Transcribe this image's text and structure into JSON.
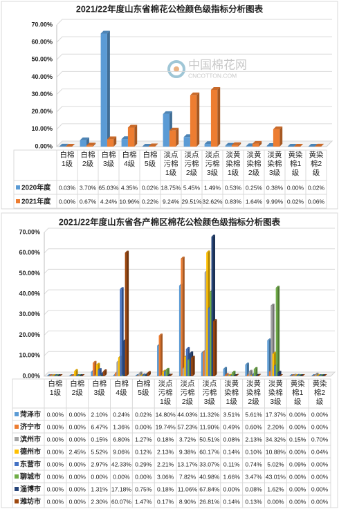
{
  "chart_data": [
    {
      "type": "bar",
      "title": "2021/22年度山东省棉花公检颜色级指标分析图表",
      "categories": [
        "白棉1级",
        "白棉2级",
        "白棉3级",
        "白棉4级",
        "白棉5级",
        "淡点污棉1级",
        "淡点污棉2级",
        "淡点污棉3级",
        "淡黄染棉1级",
        "淡黄染棉2级",
        "淡黄染棉3级",
        "黄染棉1级",
        "黄染棉2级"
      ],
      "series": [
        {
          "name": "2020年度",
          "color": "#5b9bd5",
          "values": [
            0.03,
            3.7,
            65.03,
            4.35,
            0.02,
            18.75,
            5.45,
            1.49,
            0.53,
            0.25,
            0.38,
            0.0,
            0.02
          ],
          "value_labels": [
            "0.03%",
            "3.70%",
            "65.03%",
            "4.35%",
            "0.02%",
            "18.75%",
            "5.45%",
            "1.49%",
            "0.53%",
            "0.25%",
            "0.38%",
            "0.00%",
            "0.02%"
          ]
        },
        {
          "name": "2021年度",
          "color": "#ed7d31",
          "values": [
            0.0,
            0.67,
            4.24,
            10.96,
            0.22,
            9.24,
            29.51,
            32.62,
            0.83,
            1.64,
            9.99,
            0.02,
            0.06
          ],
          "value_labels": [
            "0.00%",
            "0.67%",
            "4.24%",
            "10.96%",
            "0.22%",
            "9.24%",
            "29.51%",
            "32.62%",
            "0.83%",
            "1.64%",
            "9.99%",
            "0.02%",
            "0.06%"
          ]
        }
      ],
      "ylim": [
        0,
        70
      ],
      "yticks": [
        {
          "value": 0,
          "label": "0.00%"
        },
        {
          "value": 10,
          "label": "10.00%"
        },
        {
          "value": 20,
          "label": "20.00%"
        },
        {
          "value": 30,
          "label": "30.00%"
        },
        {
          "value": 40,
          "label": "40.00%"
        },
        {
          "value": 50,
          "label": "50.00%"
        },
        {
          "value": 60,
          "label": "60.00%"
        },
        {
          "value": 70,
          "label": "70.00%"
        }
      ],
      "grid": true
    },
    {
      "type": "bar",
      "title": "2021/22年度山东省各产棉区棉花公检颜色级指标分析图表",
      "categories": [
        "白棉1级",
        "白棉2级",
        "白棉3级",
        "白棉4级",
        "白棉5级",
        "淡点污棉1级",
        "淡点污棉2级",
        "淡点污棉3级",
        "淡黄染棉1级",
        "淡黄染棉2级",
        "淡黄染棉3级",
        "黄染棉1级",
        "黄染棉2级"
      ],
      "series": [
        {
          "name": "菏泽市",
          "color": "#5b9bd5",
          "values": [
            0.0,
            0.0,
            2.1,
            0.24,
            0.02,
            14.8,
            44.03,
            11.32,
            3.51,
            5.61,
            17.37,
            0.0,
            0.0
          ],
          "value_labels": [
            "0.00%",
            "0.00%",
            "2.10%",
            "0.24%",
            "0.02%",
            "14.80%",
            "44.03%",
            "11.32%",
            "3.51%",
            "5.61%",
            "17.37%",
            "0.00%",
            "0.00%"
          ]
        },
        {
          "name": "济宁市",
          "color": "#ed7d31",
          "values": [
            0.0,
            0.0,
            6.47,
            1.36,
            0.0,
            19.74,
            57.23,
            11.9,
            0.49,
            0.6,
            2.2,
            0.0,
            0.0
          ],
          "value_labels": [
            "0.00%",
            "0.00%",
            "6.47%",
            "1.36%",
            "0.00%",
            "19.74%",
            "57.23%",
            "11.90%",
            "0.49%",
            "0.60%",
            "2.20%",
            "0.00%",
            "0.00%"
          ]
        },
        {
          "name": "滨州市",
          "color": "#a5a5a5",
          "values": [
            0.0,
            0.0,
            0.15,
            6.8,
            1.27,
            0.18,
            3.72,
            50.51,
            0.08,
            2.13,
            34.32,
            0.15,
            0.7
          ],
          "value_labels": [
            "0.00%",
            "0.00%",
            "0.15%",
            "6.80%",
            "1.27%",
            "0.18%",
            "3.72%",
            "50.51%",
            "0.08%",
            "2.13%",
            "34.32%",
            "0.15%",
            "0.70%"
          ]
        },
        {
          "name": "德州市",
          "color": "#ffc000",
          "values": [
            0.0,
            2.45,
            5.52,
            9.06,
            0.12,
            2.13,
            9.38,
            60.17,
            0.14,
            0.1,
            10.88,
            0.0,
            0.04
          ],
          "value_labels": [
            "0.00%",
            "2.45%",
            "5.52%",
            "9.06%",
            "0.12%",
            "2.13%",
            "9.38%",
            "60.17%",
            "0.14%",
            "0.10%",
            "10.88%",
            "0.00%",
            "0.04%"
          ]
        },
        {
          "name": "东营市",
          "color": "#4472c4",
          "values": [
            0.0,
            0.0,
            2.97,
            42.33,
            0.29,
            2.21,
            13.17,
            33.07,
            0.11,
            0.74,
            5.02,
            0.09,
            0.0
          ],
          "value_labels": [
            "0.00%",
            "0.00%",
            "2.97%",
            "42.33%",
            "0.29%",
            "2.21%",
            "13.17%",
            "33.07%",
            "0.11%",
            "0.74%",
            "5.02%",
            "0.09%",
            "0.00%"
          ]
        },
        {
          "name": "聊城市",
          "color": "#70ad47",
          "values": [
            0.0,
            0.0,
            0.0,
            0.0,
            0.0,
            3.06,
            7.82,
            40.98,
            1.66,
            3.47,
            43.01,
            0.0,
            0.0
          ],
          "value_labels": [
            "0.00%",
            "0.00%",
            "0.00%",
            "0.00%",
            "0.00%",
            "3.06%",
            "7.82%",
            "40.98%",
            "1.66%",
            "3.47%",
            "43.01%",
            "0.00%",
            "0.00%"
          ]
        },
        {
          "name": "淄博市",
          "color": "#264478",
          "values": [
            0.0,
            0.0,
            1.31,
            17.18,
            0.75,
            0.18,
            11.06,
            67.84,
            0.0,
            0.08,
            1.62,
            0.0,
            0.0
          ],
          "value_labels": [
            "0.00%",
            "0.00%",
            "1.31%",
            "17.18%",
            "0.75%",
            "0.18%",
            "11.06%",
            "67.84%",
            "0.00%",
            "0.08%",
            "1.62%",
            "0.00%",
            "0.00%"
          ]
        },
        {
          "name": "潍坊市",
          "color": "#9e480e",
          "values": [
            0.0,
            0.0,
            2.3,
            60.07,
            1.47,
            0.17,
            8.9,
            26.81,
            0.14,
            0.13,
            0.0,
            0.0,
            0.0
          ],
          "value_labels": [
            "0.00%",
            "0.00%",
            "2.30%",
            "60.07%",
            "1.47%",
            "0.17%",
            "8.90%",
            "26.81%",
            "0.14%",
            "0.13%",
            "0.00%",
            "0.00%",
            "0.00%"
          ]
        }
      ],
      "ylim": [
        0,
        70
      ],
      "yticks": [
        {
          "value": 0,
          "label": "0.00%"
        },
        {
          "value": 10,
          "label": "10.00%"
        },
        {
          "value": 20,
          "label": "20.00%"
        },
        {
          "value": 30,
          "label": "30.00%"
        },
        {
          "value": 40,
          "label": "40.00%"
        },
        {
          "value": 50,
          "label": "50.00%"
        },
        {
          "value": 60,
          "label": "60.00%"
        },
        {
          "value": 70,
          "label": "70.00%"
        }
      ],
      "grid": true
    }
  ],
  "watermark": {
    "text": "中国棉花网",
    "sub": "CNCOTTON.COM"
  }
}
